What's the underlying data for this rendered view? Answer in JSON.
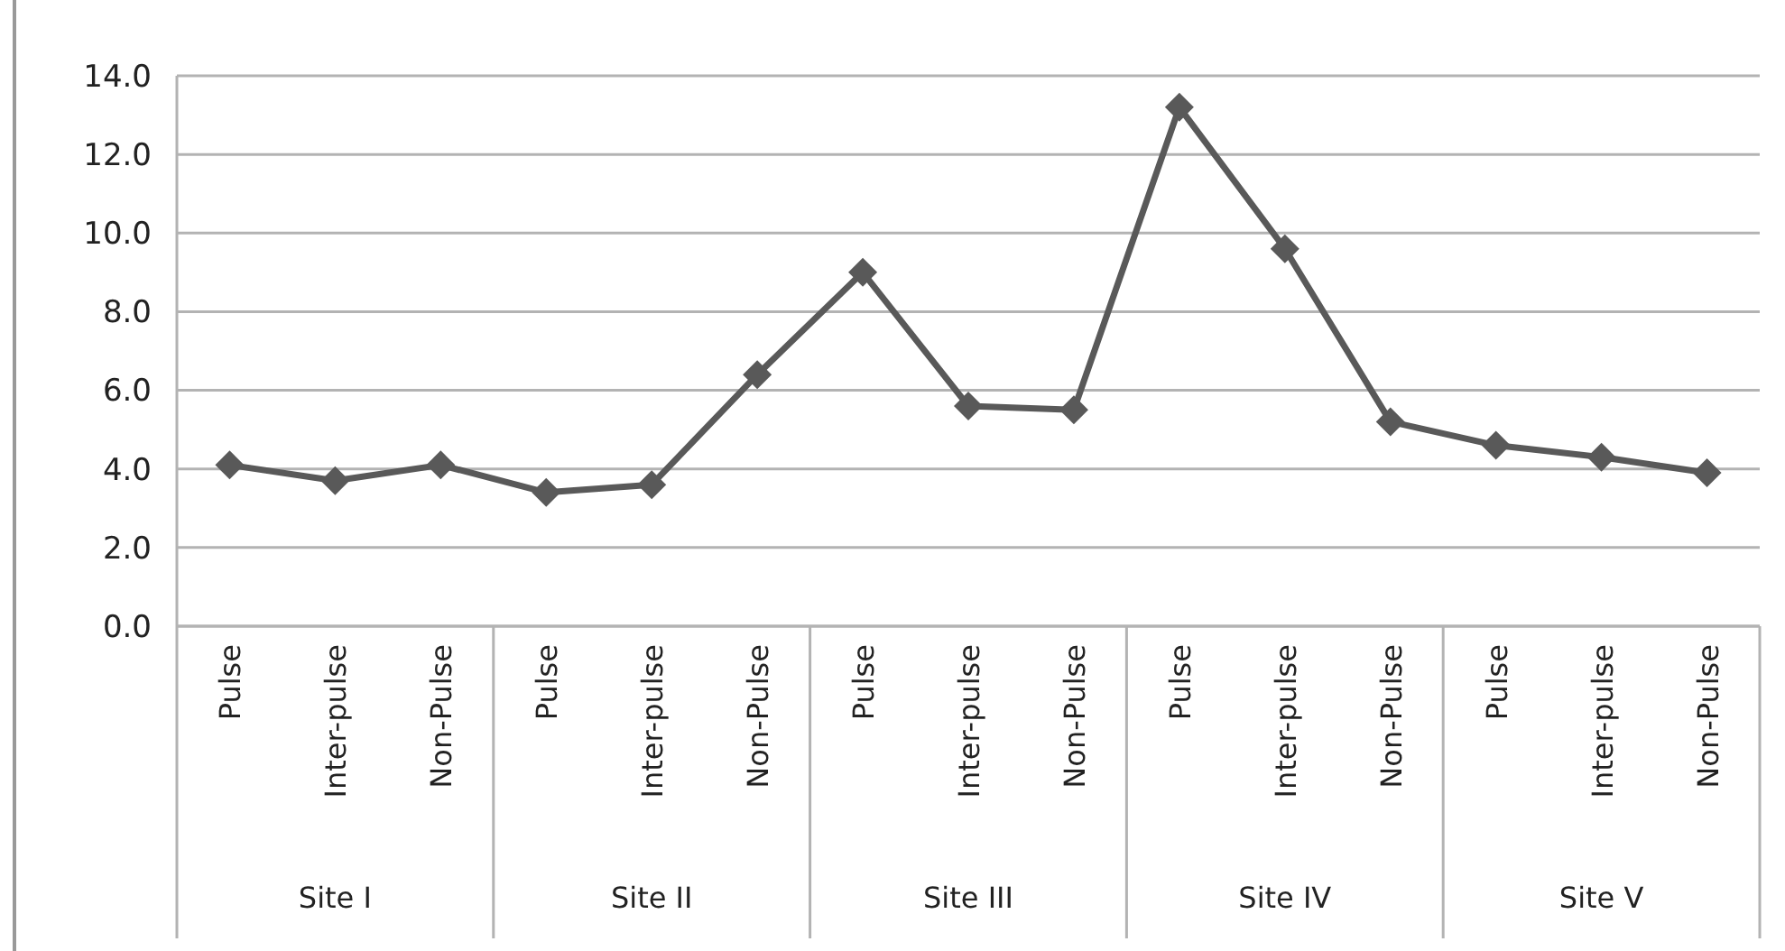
{
  "chart_data": {
    "type": "line",
    "categories": [
      "Pulse",
      "Inter-pulse",
      "Non-Pulse",
      "Pulse",
      "Inter-pulse",
      "Non-Pulse",
      "Pulse",
      "Inter-pulse",
      "Non-Pulse",
      "Pulse",
      "Inter-pulse",
      "Non-Pulse",
      "Pulse",
      "Inter-pulse",
      "Non-Pulse"
    ],
    "series": [
      {
        "color": "#595959",
        "values": [
          4.1,
          3.7,
          4.1,
          3.4,
          3.6,
          6.4,
          9.0,
          5.6,
          5.5,
          13.2,
          9.6,
          5.2,
          4.6,
          4.3,
          3.9
        ]
      }
    ],
    "annotations": [
      "Site I",
      "Site II",
      "Site III",
      "Site IV",
      "Site V"
    ],
    "ylim": [
      0,
      14
    ],
    "yticks": [
      {
        "value": 0,
        "label": "0.0"
      },
      {
        "value": 2,
        "label": "2.0"
      },
      {
        "value": 4,
        "label": "4.0"
      },
      {
        "value": 6,
        "label": "6.0"
      },
      {
        "value": 8,
        "label": "8.0"
      },
      {
        "value": 10,
        "label": "10.0"
      },
      {
        "value": 12,
        "label": "12.0"
      },
      {
        "value": 14,
        "label": "14.0"
      }
    ],
    "grid": "y",
    "marker": "diamond",
    "line_style": "solid"
  }
}
